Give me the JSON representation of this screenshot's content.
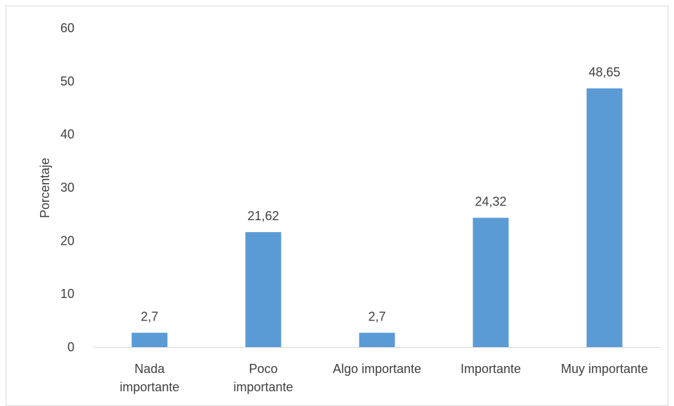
{
  "chart_data": {
    "type": "bar",
    "categories": [
      [
        "Nada",
        "importante"
      ],
      [
        "Poco",
        "importante"
      ],
      [
        "Algo importante"
      ],
      [
        "Importante"
      ],
      [
        "Muy importante"
      ]
    ],
    "values": [
      2.7,
      21.62,
      2.7,
      24.32,
      48.65
    ],
    "data_labels": [
      "2,7",
      "21,62",
      "2,7",
      "24,32",
      "48,65"
    ],
    "title": "",
    "xlabel": "",
    "ylabel": "Porcentaje",
    "ylim": [
      0,
      60
    ],
    "yticks": [
      0,
      10,
      20,
      30,
      40,
      50,
      60
    ],
    "grid": false,
    "legend": "none",
    "bar_color": "#5b9bd5",
    "axis_color": "#d9d9d9",
    "text_color": "#404040"
  }
}
